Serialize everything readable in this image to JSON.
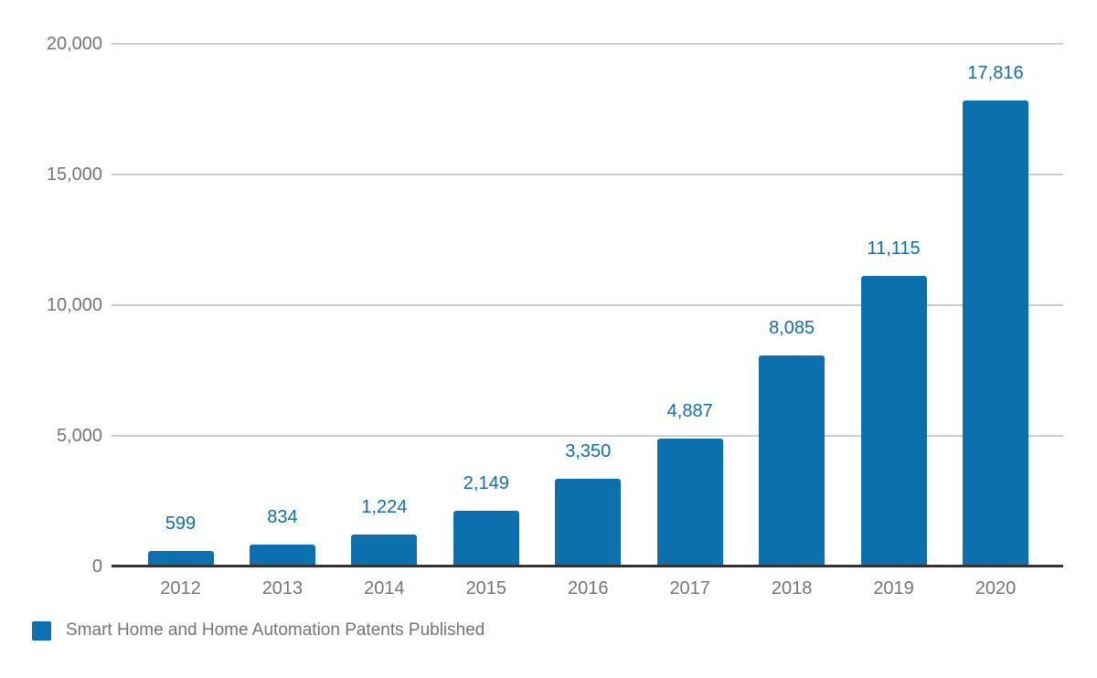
{
  "colors": {
    "bar": "#0b70ad",
    "data_label": "#0d6fb0",
    "axis_text": "#757575",
    "legend_text": "#757575",
    "gridline": "#cccccc",
    "baseline": "#333333",
    "background": "#ffffff"
  },
  "legend": {
    "label": "Smart Home and Home Automation Patents Published"
  },
  "chart_data": {
    "type": "bar",
    "title": "",
    "xlabel": "",
    "ylabel": "",
    "categories": [
      "2012",
      "2013",
      "2014",
      "2015",
      "2016",
      "2017",
      "2018",
      "2019",
      "2020"
    ],
    "series": [
      {
        "name": "Smart Home and Home Automation Patents Published",
        "values": [
          599,
          834,
          1224,
          2149,
          3350,
          4887,
          8085,
          11115,
          17816
        ]
      }
    ],
    "data_labels": [
      "599",
      "834",
      "1,224",
      "2,149",
      "3,350",
      "4,887",
      "8,085",
      "11,115",
      "17,816"
    ],
    "ylim": [
      0,
      20000
    ],
    "y_ticks": [
      {
        "value": 0,
        "label": "0"
      },
      {
        "value": 5000,
        "label": "5,000"
      },
      {
        "value": 10000,
        "label": "10,000"
      },
      {
        "value": 15000,
        "label": "15,000"
      },
      {
        "value": 20000,
        "label": "20,000"
      }
    ],
    "grid": true,
    "legend_position": "bottom",
    "bar_color": "#0b70ad"
  }
}
